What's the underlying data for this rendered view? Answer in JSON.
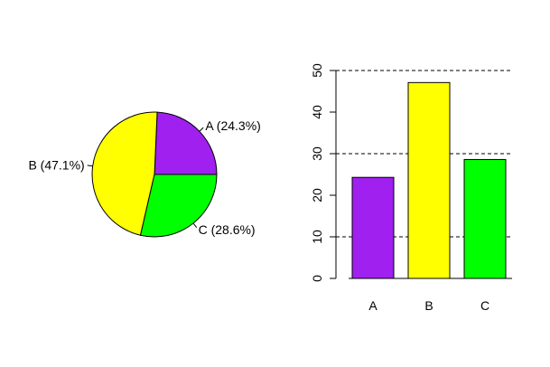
{
  "chart_data": [
    {
      "type": "pie",
      "categories": [
        "A",
        "B",
        "C"
      ],
      "values": [
        24.3,
        47.1,
        28.6
      ],
      "labels": [
        "A (24.3%)",
        "B (47.1%)",
        "C (28.6%)"
      ],
      "colors": [
        "#a020f0",
        "#ffff00",
        "#00ff00"
      ]
    },
    {
      "type": "bar",
      "categories": [
        "A",
        "B",
        "C"
      ],
      "values": [
        24.3,
        47.1,
        28.6
      ],
      "colors": [
        "#a020f0",
        "#ffff00",
        "#00ff00"
      ],
      "ylim": [
        0,
        50
      ],
      "yticks": [
        "0",
        "10",
        "20",
        "30",
        "40",
        "50"
      ],
      "reference_lines": [
        10,
        30,
        50
      ]
    }
  ]
}
